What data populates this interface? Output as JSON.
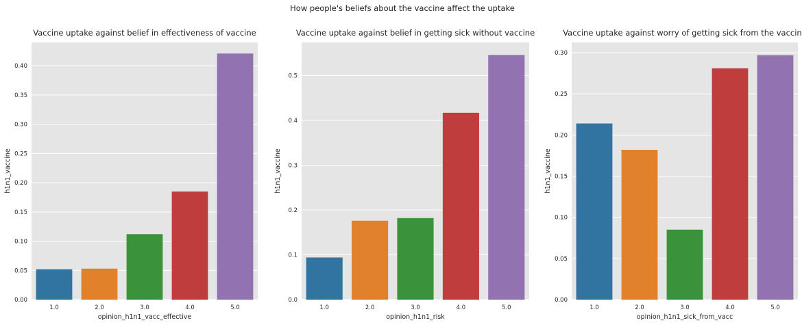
{
  "figure": {
    "suptitle": "How people's beliefs about the vaccine affect the uptake"
  },
  "chart_data": [
    {
      "type": "bar",
      "title": "Vaccine uptake against belief in effectiveness of vaccine",
      "xlabel": "opinion_h1n1_vacc_effective",
      "ylabel": "h1n1_vaccine",
      "categories": [
        "1.0",
        "2.0",
        "3.0",
        "4.0",
        "5.0"
      ],
      "values": [
        0.052,
        0.053,
        0.112,
        0.185,
        0.421
      ],
      "ylim": [
        0,
        0.44
      ],
      "yticks": [
        0.0,
        0.05,
        0.1,
        0.15,
        0.2,
        0.25,
        0.3,
        0.35,
        0.4
      ],
      "ytick_labels": [
        "0.00",
        "0.05",
        "0.10",
        "0.15",
        "0.20",
        "0.25",
        "0.30",
        "0.35",
        "0.40"
      ],
      "grid": true,
      "colors": [
        "#3274a1",
        "#e1812c",
        "#3a923a",
        "#c03d3e",
        "#9372b2"
      ]
    },
    {
      "type": "bar",
      "title": "Vaccine uptake against belief in getting sick without vaccine",
      "xlabel": "opinion_h1n1_risk",
      "ylabel": "h1n1_vaccine",
      "categories": [
        "1.0",
        "2.0",
        "3.0",
        "4.0",
        "5.0"
      ],
      "values": [
        0.094,
        0.176,
        0.182,
        0.417,
        0.546
      ],
      "ylim": [
        0,
        0.574
      ],
      "yticks": [
        0.0,
        0.1,
        0.2,
        0.3,
        0.4,
        0.5
      ],
      "ytick_labels": [
        "0.0",
        "0.1",
        "0.2",
        "0.3",
        "0.4",
        "0.5"
      ],
      "grid": true,
      "colors": [
        "#3274a1",
        "#e1812c",
        "#3a923a",
        "#c03d3e",
        "#9372b2"
      ]
    },
    {
      "type": "bar",
      "title": "Vaccine uptake against worry of getting sick from the vaccine",
      "xlabel": "opinion_h1n1_sick_from_vacc",
      "ylabel": "h1n1_vaccine",
      "categories": [
        "1.0",
        "2.0",
        "3.0",
        "4.0",
        "5.0"
      ],
      "values": [
        0.214,
        0.182,
        0.085,
        0.281,
        0.297
      ],
      "ylim": [
        0,
        0.3125
      ],
      "yticks": [
        0.0,
        0.05,
        0.1,
        0.15,
        0.2,
        0.25,
        0.3
      ],
      "ytick_labels": [
        "0.00",
        "0.05",
        "0.10",
        "0.15",
        "0.20",
        "0.25",
        "0.30"
      ],
      "grid": true,
      "colors": [
        "#3274a1",
        "#e1812c",
        "#3a923a",
        "#c03d3e",
        "#9372b2"
      ]
    }
  ]
}
